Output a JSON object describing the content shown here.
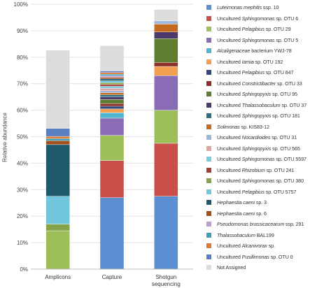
{
  "chart_data": {
    "type": "bar",
    "stacked": true,
    "ylabel": "Relative abundance",
    "ylim": [
      0,
      100
    ],
    "yticks": [
      "0%",
      "10%",
      "20%",
      "30%",
      "40%",
      "50%",
      "60%",
      "70%",
      "80%",
      "90%",
      "100%"
    ],
    "categories": [
      "Amplicons",
      "Capture",
      "Shotgun sequencing"
    ],
    "category_lines": [
      [
        "Amplicons"
      ],
      [
        "Capture"
      ],
      [
        "Shotgun",
        "sequencing"
      ]
    ],
    "legend_position": "right",
    "series": [
      {
        "name": "Luteimonas mephitis ssp. 10",
        "label_parts": [
          {
            "t": "Luteimonas mephitis",
            "i": true
          },
          {
            "t": " ssp. 10",
            "i": false
          }
        ],
        "color": "#5b8fd1",
        "values": [
          0,
          27,
          27.5
        ]
      },
      {
        "name": "Uncultured Sphingomonas sp. OTU 6",
        "label_parts": [
          {
            "t": "Uncultured ",
            "i": false
          },
          {
            "t": "Sphingomonas",
            "i": true
          },
          {
            "t": " sp. OTU 6",
            "i": false
          }
        ],
        "color": "#c9504a",
        "values": [
          0,
          14,
          20
        ]
      },
      {
        "name": "Uncultured Pelagibius sp. OTU 29",
        "label_parts": [
          {
            "t": "Uncultured ",
            "i": false
          },
          {
            "t": "Pelagibius",
            "i": true
          },
          {
            "t": " sp. OTU 29",
            "i": false
          }
        ],
        "color": "#9cbf5a",
        "values": [
          14.5,
          9.5,
          12.5
        ]
      },
      {
        "name": "Uncultured Sphingomonas sp. OTU 5",
        "label_parts": [
          {
            "t": "Uncultured ",
            "i": false
          },
          {
            "t": "Sphingomonas",
            "i": true
          },
          {
            "t": " sp. OTU 5",
            "i": false
          }
        ],
        "color": "#8a6bb6",
        "values": [
          0,
          6.5,
          13
        ]
      },
      {
        "name": "Alcaligenaceae bacterium YWJ-78",
        "label_parts": [
          {
            "t": "Alcaligenaceae",
            "i": true
          },
          {
            "t": " bacterium YWJ-78",
            "i": false
          }
        ],
        "color": "#4fb6cf",
        "values": [
          0,
          2,
          0
        ]
      },
      {
        "name": "Uncultured Iamia sp. OTU 192",
        "label_parts": [
          {
            "t": "Uncultured ",
            "i": false
          },
          {
            "t": "Iamia",
            "i": true
          },
          {
            "t": " sp. OTU 192",
            "i": false
          }
        ],
        "color": "#f0a04f",
        "values": [
          0,
          1.5,
          3.5
        ]
      },
      {
        "name": "Uncultured Pelagibius sp. OTU 847",
        "label_parts": [
          {
            "t": "Uncultured ",
            "i": false
          },
          {
            "t": "Pelagibius",
            "i": true
          },
          {
            "t": " sp. OTU 847",
            "i": false
          }
        ],
        "color": "#2e4a7a",
        "values": [
          0,
          1,
          0
        ]
      },
      {
        "name": "Uncultured Constrictibacter sp. OTU 33",
        "label_parts": [
          {
            "t": "Uncultured ",
            "i": false
          },
          {
            "t": "Constrictibacter",
            "i": true
          },
          {
            "t": " sp. OTU 33",
            "i": false
          }
        ],
        "color": "#8c2f29",
        "values": [
          0,
          1,
          1.5
        ]
      },
      {
        "name": "Uncultured Sphingopyxis sp. OTU 95",
        "label_parts": [
          {
            "t": "Uncultured ",
            "i": false
          },
          {
            "t": "Sphingopyxis",
            "i": true
          },
          {
            "t": " sp. OTU 95",
            "i": false
          }
        ],
        "color": "#5f7d2f",
        "values": [
          0,
          1.5,
          9
        ]
      },
      {
        "name": "Uncultured Thalassobaculum sp. OTU 37",
        "label_parts": [
          {
            "t": "Uncultured ",
            "i": false
          },
          {
            "t": "Thalassobaculum",
            "i": true
          },
          {
            "t": " sp. OTU 37",
            "i": false
          }
        ],
        "color": "#4d3a6b",
        "values": [
          0,
          1,
          2.5
        ]
      },
      {
        "name": "Uncultured Sphingopyxis sp. OTU 181",
        "label_parts": [
          {
            "t": "Uncultured ",
            "i": false
          },
          {
            "t": "Sphingopyxis",
            "i": true
          },
          {
            "t": " sp. OTU 181",
            "i": false
          }
        ],
        "color": "#2b6e80",
        "values": [
          0,
          0.8,
          0
        ]
      },
      {
        "name": "Solimonas sp. KIS83-12",
        "label_parts": [
          {
            "t": "Solimonas",
            "i": true
          },
          {
            "t": " sp. KIS83-12",
            "i": false
          }
        ],
        "color": "#c46a1e",
        "values": [
          0,
          0.8,
          3
        ]
      },
      {
        "name": "Uncultured Nocardioides sp. OTU 31",
        "label_parts": [
          {
            "t": "Uncultured ",
            "i": false
          },
          {
            "t": "Nocardioides",
            "i": true
          },
          {
            "t": " sp. OTU 31",
            "i": false
          }
        ],
        "color": "#9db6de",
        "values": [
          0,
          0.8,
          1.2
        ]
      },
      {
        "name": "Uncultured Sphingopyxis sp. OTU 565",
        "label_parts": [
          {
            "t": "Uncultured ",
            "i": false
          },
          {
            "t": "Sphingopyxis",
            "i": true
          },
          {
            "t": " sp. OTU 565",
            "i": false
          }
        ],
        "color": "#e3a3a0",
        "values": [
          0,
          0.8,
          0
        ]
      },
      {
        "name": "Uncultured Sphingomonas sp. OTU 5597",
        "label_parts": [
          {
            "t": "Uncultured ",
            "i": false
          },
          {
            "t": "Sphingomonas",
            "i": true
          },
          {
            "t": " sp. OTU 5597",
            "i": false
          }
        ],
        "color": "#7ecbdd",
        "values": [
          0,
          0.8,
          0
        ]
      },
      {
        "name": "Uncultured Rhizobium sp. OTU 241",
        "label_parts": [
          {
            "t": "Uncultured ",
            "i": false
          },
          {
            "t": "Rhizobium",
            "i": true
          },
          {
            "t": " sp. OTU 241",
            "i": false
          }
        ],
        "color": "#a53c37",
        "values": [
          0,
          0.7,
          0
        ]
      },
      {
        "name": "Uncultured Sphingomonas sp. OTU 380",
        "label_parts": [
          {
            "t": "Uncultured ",
            "i": false
          },
          {
            "t": "Sphingomonas",
            "i": true
          },
          {
            "t": " sp. OTU 380",
            "i": false
          }
        ],
        "color": "#86a34a",
        "values": [
          2.5,
          0.7,
          0
        ]
      },
      {
        "name": "Uncultured Pelagibius sp. OTU 5757",
        "label_parts": [
          {
            "t": "Uncultured ",
            "i": false
          },
          {
            "t": "Pelagibius",
            "i": true
          },
          {
            "t": " sp. OTU 5757",
            "i": false
          }
        ],
        "color": "#72c6dc",
        "values": [
          10.5,
          0.7,
          0
        ]
      },
      {
        "name": "Hephaestia caeni sp. 3",
        "label_parts": [
          {
            "t": "Hephaestia caeni",
            "i": true
          },
          {
            "t": " sp. 3",
            "i": false
          }
        ],
        "color": "#1f5a6b",
        "values": [
          19.5,
          0.7,
          0
        ]
      },
      {
        "name": "Hephaestia caeni sp. 6",
        "label_parts": [
          {
            "t": "Hephaestia caeni",
            "i": true
          },
          {
            "t": " sp. 6",
            "i": false
          }
        ],
        "color": "#a34f1b",
        "values": [
          1.5,
          0.6,
          0
        ]
      },
      {
        "name": "Pseudomonas brassicacearum ssp. 291",
        "label_parts": [
          {
            "t": "Pseudomonas brassicacearum",
            "i": true
          },
          {
            "t": " ssp. 291",
            "i": false
          }
        ],
        "color": "#b99fd3",
        "values": [
          0,
          0.6,
          0
        ]
      },
      {
        "name": "Thalassobaculum BAL199",
        "label_parts": [
          {
            "t": "Thalassobaculum",
            "i": true
          },
          {
            "t": " BAL199",
            "i": false
          }
        ],
        "color": "#3ea0b5",
        "values": [
          0.8,
          0.6,
          0
        ]
      },
      {
        "name": "Uncultured Alcanivorax sp.",
        "label_parts": [
          {
            "t": "Uncultured ",
            "i": false
          },
          {
            "t": "Alcanivorax",
            "i": true
          },
          {
            "t": " sp.",
            "i": false
          }
        ],
        "color": "#e07a2e",
        "values": [
          0.8,
          0.6,
          0
        ]
      },
      {
        "name": "Uncultured Pusillimonas sp. OTU 0",
        "label_parts": [
          {
            "t": "Uncultured ",
            "i": false
          },
          {
            "t": "Pusillimonas",
            "i": true
          },
          {
            "t": " sp. OTU 0",
            "i": false
          }
        ],
        "color": "#5a7fc0",
        "values": [
          3,
          0.6,
          0
        ]
      },
      {
        "name": "Not Assigned",
        "label_parts": [
          {
            "t": "Not Assigned",
            "i": false
          }
        ],
        "color": "#dcdcdc",
        "values": [
          29.5,
          9.5,
          4.3
        ]
      }
    ]
  }
}
